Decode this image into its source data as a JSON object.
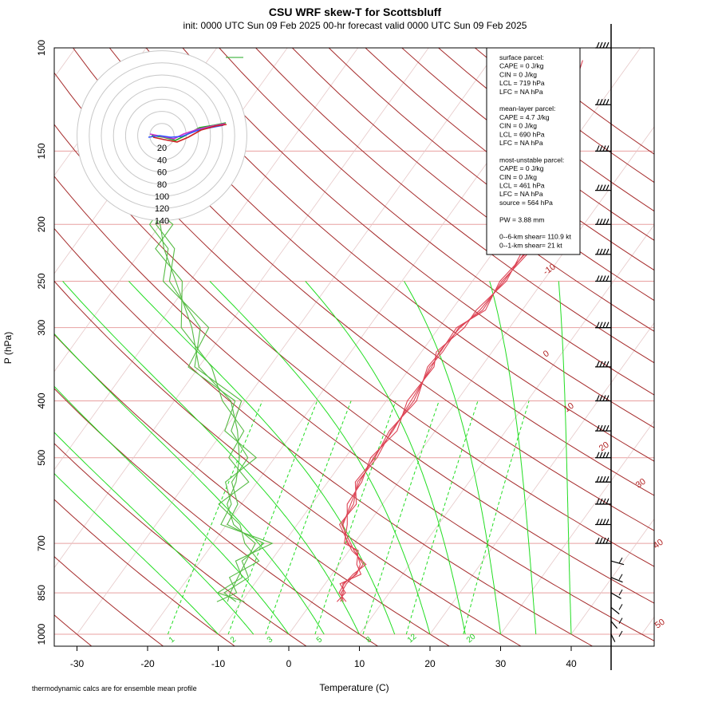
{
  "title": "CSU WRF skew-T for Scottsbluff",
  "subtitle": "init: 0000 UTC Sun 09 Feb 2025    00-hr forecast valid 0000 UTC Sun 09 Feb 2025",
  "footnote": "thermodynamic calcs are for ensemble mean profile",
  "colors": {
    "isotherm": "#a52a2a",
    "isobar": "#e8a0a0",
    "mixing_ratio": "#22dd22",
    "temperature": "#dd4455",
    "dewpoint": "#55bb44",
    "hodo_ring": "#c8c8c8"
  },
  "stats_box": [
    "surface parcel:",
    "CAPE = 0 J/kg",
    "CIN = 0 J/kg",
    "LCL = 719 hPa",
    "LFC = NA hPa",
    "",
    "mean-layer parcel:",
    "CAPE = 4.7 J/kg",
    "CIN = 0 J/kg",
    "LCL = 690 hPa",
    "LFC = NA hPa",
    "",
    "most-unstable parcel:",
    "CAPE = 0 J/kg",
    "CIN = 0 J/kg",
    "LCL = 461 hPa",
    "LFC = NA hPa",
    "source = 564 hPa",
    "",
    "PW =  3.88 mm",
    "",
    "0--6-km shear= 110.9 kt",
    "0--1-km shear= 21 kt"
  ],
  "chart_data": {
    "type": "line",
    "title": "CSU WRF skew-T for Scottsbluff",
    "xlabel": "Temperature (C)",
    "ylabel": "P (hPa)",
    "x_ticks": [
      -30,
      -20,
      -10,
      0,
      10,
      20,
      30,
      40
    ],
    "y_ticks": [
      100,
      150,
      200,
      250,
      300,
      400,
      500,
      700,
      850,
      1000
    ],
    "y_scale": "log",
    "ylim": [
      1000,
      100
    ],
    "isotherm_labels": [
      "-10",
      "0",
      "10",
      "20",
      "30",
      "40",
      "50"
    ],
    "mixing_ratio_labels": [
      "1",
      "2",
      "3",
      "5",
      "8",
      "12",
      "20"
    ],
    "hodograph_rings": [
      "20",
      "40",
      "60",
      "80",
      "100",
      "120",
      "140"
    ],
    "series": [
      {
        "name": "temperature",
        "points": [
          [
            880,
            4.0
          ],
          [
            850,
            3.5
          ],
          [
            820,
            2.5
          ],
          [
            790,
            3.5
          ],
          [
            760,
            3.0
          ],
          [
            720,
            1.0
          ],
          [
            700,
            -1.0
          ],
          [
            650,
            -3.5
          ],
          [
            600,
            -4.5
          ],
          [
            550,
            -5.5
          ],
          [
            500,
            -6.0
          ],
          [
            450,
            -6.0
          ],
          [
            400,
            -6.5
          ],
          [
            350,
            -7.0
          ],
          [
            330,
            -7.5
          ],
          [
            300,
            -7.0
          ],
          [
            280,
            -6.0
          ],
          [
            250,
            -5.5
          ],
          [
            225,
            -5.5
          ],
          [
            200,
            -6.0
          ],
          [
            175,
            -8.0
          ],
          [
            150,
            -10.5
          ],
          [
            125,
            -14.0
          ],
          [
            105,
            -17.5
          ]
        ]
      },
      {
        "name": "dewpoint",
        "points": [
          [
            880,
            -12.0
          ],
          [
            850,
            -12.5
          ],
          [
            800,
            -13.0
          ],
          [
            750,
            -13.5
          ],
          [
            700,
            -14.0
          ],
          [
            650,
            -19.0
          ],
          [
            600,
            -22.0
          ],
          [
            550,
            -23.0
          ],
          [
            500,
            -25.0
          ],
          [
            450,
            -28.0
          ],
          [
            400,
            -32.0
          ],
          [
            350,
            -40.0
          ],
          [
            300,
            -45.0
          ],
          [
            250,
            -52.0
          ],
          [
            220,
            -57.0
          ],
          [
            200,
            -60.0
          ],
          [
            180,
            -64.0
          ]
        ]
      }
    ],
    "wind_barb_levels": [
      100,
      125,
      150,
      175,
      200,
      225,
      250,
      300,
      350,
      400,
      450,
      500,
      550,
      600,
      650,
      700,
      750,
      800,
      850,
      900,
      950,
      1000
    ]
  }
}
